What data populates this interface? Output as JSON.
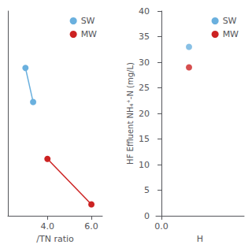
{
  "chart_data": [
    {
      "type": "line",
      "xlabel": "/TN ratio",
      "xlim": [
        2.2,
        6.5
      ],
      "xticks": [
        {
          "value": 4.0,
          "label": "4.0"
        },
        {
          "value": 6.0,
          "label": "6.0"
        }
      ],
      "ylim": [
        0,
        27
      ],
      "yticks": [],
      "tick_labels": "x",
      "grid": false,
      "legend": "upper right",
      "marker": "circle",
      "series": [
        {
          "name": "SW",
          "color": "#6ab0de",
          "x": [
            3.0,
            3.35
          ],
          "values": [
            19.5,
            15.0
          ]
        },
        {
          "name": "MW",
          "color": "#cc2222",
          "x": [
            4.0,
            6.0
          ],
          "values": [
            7.5,
            1.5
          ]
        }
      ]
    },
    {
      "type": "scatter",
      "xlabel": "H",
      "ylabel": "HF Effluent NH₄⁺-N (mg/L)",
      "xlim": [
        -0.1,
        1.5
      ],
      "xticks": [
        {
          "value": 0.0,
          "label": "0.0"
        }
      ],
      "ylim": [
        0,
        40
      ],
      "yticks": [
        0,
        5,
        10,
        15,
        20,
        25,
        30,
        35,
        40
      ],
      "grid": false,
      "legend": "upper right",
      "marker": "circle",
      "series": [
        {
          "name": "SW",
          "color": "#6ab0de",
          "x": [
            0.5
          ],
          "values": [
            33.0
          ]
        },
        {
          "name": "MW",
          "color": "#cc2222",
          "x": [
            0.5
          ],
          "values": [
            29.0
          ]
        }
      ]
    }
  ]
}
